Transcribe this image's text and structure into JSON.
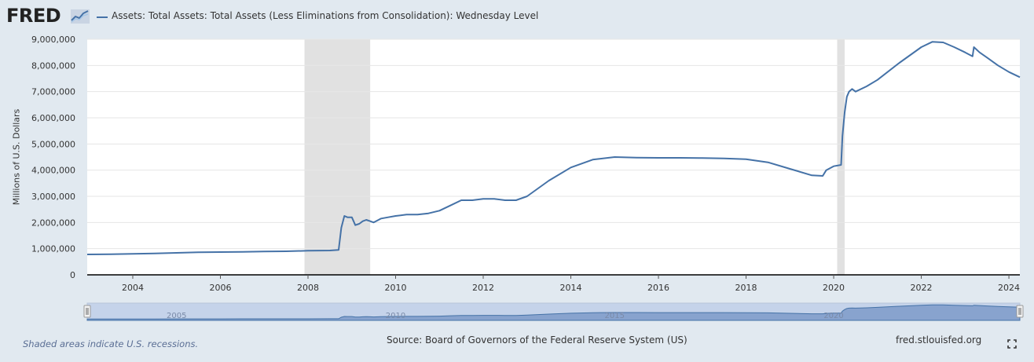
{
  "header": {
    "logo_text": "FRED",
    "legend_label": "Assets: Total Assets: Total Assets (Less Eliminations from Consolidation): Wednesday Level"
  },
  "footer": {
    "note": "Shaded areas indicate U.S. recessions.",
    "source": "Source: Board of Governors of the Federal Reserve System (US)",
    "url": "fred.stlouisfed.org"
  },
  "navigator": {
    "labels": [
      "2005",
      "2010",
      "2015",
      "2020"
    ]
  },
  "colors": {
    "series": "#4572a7",
    "recession": "#e1e1e1",
    "background": "#e1e9f0"
  },
  "chart_data": {
    "type": "line",
    "title": "",
    "xlabel": "",
    "ylabel": "Millions of U.S. Dollars",
    "xlim": [
      2002.96,
      2024.25
    ],
    "ylim": [
      0,
      9000000
    ],
    "x_ticks": [
      "2004",
      "2006",
      "2008",
      "2010",
      "2012",
      "2014",
      "2016",
      "2018",
      "2020",
      "2022",
      "2024"
    ],
    "y_ticks": [
      "0",
      "1,000,000",
      "2,000,000",
      "3,000,000",
      "4,000,000",
      "5,000,000",
      "6,000,000",
      "7,000,000",
      "8,000,000",
      "9,000,000"
    ],
    "recessions": [
      [
        2007.92,
        2009.42
      ],
      [
        2020.08,
        2020.25
      ]
    ],
    "grid": true,
    "legend": "top-left",
    "series": [
      {
        "name": "Assets: Total Assets: Total Assets (Less Eliminations from Consolidation): Wednesday Level",
        "x": [
          2002.96,
          2003.5,
          2004.0,
          2004.5,
          2005.0,
          2005.5,
          2006.0,
          2006.5,
          2007.0,
          2007.5,
          2008.0,
          2008.5,
          2008.7,
          2008.76,
          2008.83,
          2008.9,
          2009.0,
          2009.08,
          2009.17,
          2009.25,
          2009.33,
          2009.42,
          2009.5,
          2009.67,
          2009.83,
          2010.0,
          2010.25,
          2010.5,
          2010.75,
          2011.0,
          2011.25,
          2011.5,
          2011.75,
          2012.0,
          2012.25,
          2012.5,
          2012.75,
          2013.0,
          2013.5,
          2014.0,
          2014.5,
          2015.0,
          2015.5,
          2016.0,
          2016.5,
          2017.0,
          2017.5,
          2018.0,
          2018.5,
          2019.0,
          2019.5,
          2019.75,
          2019.83,
          2020.0,
          2020.17,
          2020.2,
          2020.25,
          2020.3,
          2020.35,
          2020.42,
          2020.5,
          2020.75,
          2021.0,
          2021.5,
          2022.0,
          2022.25,
          2022.5,
          2022.75,
          2023.0,
          2023.17,
          2023.2,
          2023.33,
          2023.5,
          2023.75,
          2024.0,
          2024.25
        ],
        "values": [
          780000,
          790000,
          800000,
          820000,
          840000,
          860000,
          870000,
          880000,
          890000,
          900000,
          920000,
          930000,
          950000,
          1800000,
          2250000,
          2200000,
          2200000,
          1900000,
          1950000,
          2050000,
          2100000,
          2050000,
          2000000,
          2150000,
          2200000,
          2250000,
          2300000,
          2300000,
          2350000,
          2450000,
          2650000,
          2850000,
          2850000,
          2900000,
          2900000,
          2850000,
          2850000,
          3000000,
          3600000,
          4100000,
          4400000,
          4500000,
          4480000,
          4470000,
          4470000,
          4460000,
          4450000,
          4420000,
          4300000,
          4050000,
          3800000,
          3780000,
          4000000,
          4150000,
          4200000,
          5300000,
          6200000,
          6800000,
          7000000,
          7100000,
          7000000,
          7200000,
          7450000,
          8100000,
          8700000,
          8900000,
          8880000,
          8700000,
          8500000,
          8350000,
          8700000,
          8500000,
          8300000,
          8000000,
          7750000,
          7550000
        ]
      }
    ]
  }
}
